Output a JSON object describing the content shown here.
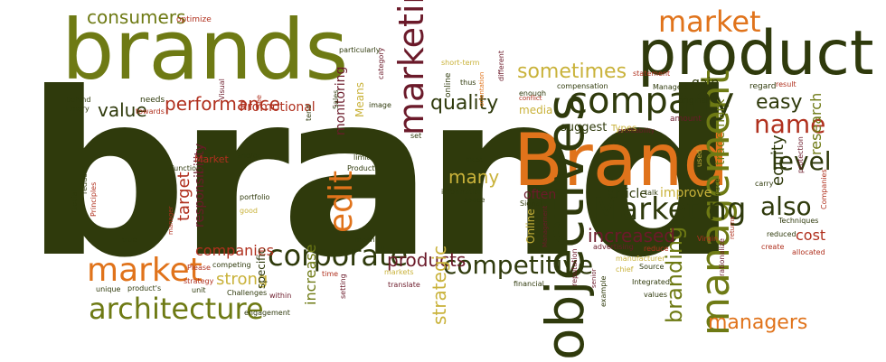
{
  "colors": {
    "dark_green": "#2f3a0c",
    "olive": "#6e7a14",
    "orange": "#e0731b",
    "maroon": "#6b1a2a",
    "red": "#b0301e",
    "yellow": "#c9b23a"
  },
  "words": [
    {
      "text": "brand",
      "color": "dark_green",
      "rotated": false
    },
    {
      "text": "brands",
      "color": "olive",
      "rotated": false
    },
    {
      "text": "product",
      "color": "dark_green",
      "rotated": false
    },
    {
      "text": "Brand",
      "color": "orange",
      "rotated": false
    },
    {
      "text": "objectives",
      "color": "dark_green",
      "rotated": true
    },
    {
      "text": "management",
      "color": "olive",
      "rotated": true
    },
    {
      "text": "company",
      "color": "dark_green",
      "rotated": false
    },
    {
      "text": "market",
      "color": "orange",
      "rotated": false
    },
    {
      "text": "market",
      "color": "orange",
      "rotated": false
    },
    {
      "text": "marketing",
      "color": "maroon",
      "rotated": true
    },
    {
      "text": "Marketing",
      "color": "dark_green",
      "rotated": false
    },
    {
      "text": "architecture",
      "color": "olive",
      "rotated": false
    },
    {
      "text": "corporate",
      "color": "dark_green",
      "rotated": false
    },
    {
      "text": "competitive",
      "color": "dark_green",
      "rotated": false
    },
    {
      "text": "consumers",
      "color": "olive",
      "rotated": false
    },
    {
      "text": "sometimes",
      "color": "yellow",
      "rotated": false
    },
    {
      "text": "performance",
      "color": "red",
      "rotated": false
    },
    {
      "text": "quality",
      "color": "dark_green",
      "rotated": false
    },
    {
      "text": "value",
      "color": "dark_green",
      "rotated": false
    },
    {
      "text": "name",
      "color": "red",
      "rotated": false
    },
    {
      "text": "level",
      "color": "dark_green",
      "rotated": false
    },
    {
      "text": "also",
      "color": "dark_green",
      "rotated": false
    },
    {
      "text": "easy",
      "color": "dark_green",
      "rotated": false
    },
    {
      "text": "research",
      "color": "olive",
      "rotated": true
    },
    {
      "text": "edit",
      "color": "orange",
      "rotated": true
    },
    {
      "text": "many",
      "color": "yellow",
      "rotated": false
    },
    {
      "text": "branding",
      "color": "olive",
      "rotated": true
    },
    {
      "text": "managers",
      "color": "orange",
      "rotated": false
    },
    {
      "text": "increased",
      "color": "maroon",
      "rotated": false
    },
    {
      "text": "products",
      "color": "maroon",
      "rotated": false
    },
    {
      "text": "strategic",
      "color": "yellow",
      "rotated": true
    },
    {
      "text": "companies",
      "color": "red",
      "rotated": false
    },
    {
      "text": "strong",
      "color": "yellow",
      "rotated": false
    },
    {
      "text": "target",
      "color": "red",
      "rotated": true
    },
    {
      "text": "increase",
      "color": "olive",
      "rotated": true
    },
    {
      "text": "equity",
      "color": "dark_green",
      "rotated": true
    },
    {
      "text": "cost",
      "color": "red",
      "rotated": false
    },
    {
      "text": "trademark",
      "color": "olive",
      "rotated": true
    },
    {
      "text": "Promotional",
      "color": "red",
      "rotated": false
    },
    {
      "text": "monitoring",
      "color": "maroon",
      "rotated": true
    },
    {
      "text": "responsibility",
      "color": "maroon",
      "rotated": true
    },
    {
      "text": "article",
      "color": "dark_green",
      "rotated": false
    },
    {
      "text": "improve",
      "color": "yellow",
      "rotated": false
    },
    {
      "text": "often",
      "color": "maroon",
      "rotated": false
    },
    {
      "text": "gain",
      "color": "dark_green",
      "rotated": false
    },
    {
      "text": "suggest",
      "color": "dark_green",
      "rotated": false
    },
    {
      "text": "specific",
      "color": "dark_green",
      "rotated": true
    },
    {
      "text": "Online",
      "color": "yellow",
      "rotated": true
    },
    {
      "text": "Means",
      "color": "yellow",
      "rotated": true
    },
    {
      "text": "Market",
      "color": "red",
      "rotated": false
    },
    {
      "text": "media",
      "color": "yellow",
      "rotated": false
    },
    {
      "text": "Types",
      "color": "yellow",
      "rotated": false
    },
    {
      "text": "original",
      "color": "dark_green",
      "rotated": false
    },
    {
      "text": "amount",
      "color": "maroon",
      "rotated": false
    },
    {
      "text": "regard",
      "color": "dark_green",
      "rotated": false
    },
    {
      "text": "result",
      "color": "red",
      "rotated": false
    },
    {
      "text": "Managers",
      "color": "dark_green",
      "rotated": false
    },
    {
      "text": "compensation",
      "color": "dark_green",
      "rotated": false
    },
    {
      "text": "statement",
      "color": "red",
      "rotated": false
    },
    {
      "text": "enough",
      "color": "dark_green",
      "rotated": false
    },
    {
      "text": "short-term",
      "color": "yellow",
      "rotated": false
    },
    {
      "text": "different",
      "color": "maroon",
      "rotated": true
    },
    {
      "text": "orientation",
      "color": "orange",
      "rotated": true
    },
    {
      "text": "online",
      "color": "dark_green",
      "rotated": true
    },
    {
      "text": "thus",
      "color": "dark_green",
      "rotated": false
    },
    {
      "text": "particularly",
      "color": "dark_green",
      "rotated": false
    },
    {
      "text": "category",
      "color": "maroon",
      "rotated": true
    },
    {
      "text": "image",
      "color": "dark_green",
      "rotated": false
    },
    {
      "text": "optimize",
      "color": "red",
      "rotated": false
    },
    {
      "text": "needs",
      "color": "dark_green",
      "rotated": false
    },
    {
      "text": "towards",
      "color": "red",
      "rotated": false
    },
    {
      "text": "behind",
      "color": "dark_green",
      "rotated": false
    },
    {
      "text": "Emory",
      "color": "dark_green",
      "rotated": false
    },
    {
      "text": "Visual",
      "color": "maroon",
      "rotated": true
    },
    {
      "text": "See",
      "color": "red",
      "rotated": true
    },
    {
      "text": "Sales",
      "color": "dark_green",
      "rotated": true
    },
    {
      "text": "tend",
      "color": "dark_green",
      "rotated": true
    },
    {
      "text": "set",
      "color": "dark_green",
      "rotated": false
    },
    {
      "text": "must",
      "color": "dark_green",
      "rotated": false
    },
    {
      "text": "limit",
      "color": "dark_green",
      "rotated": false
    },
    {
      "text": "Product",
      "color": "dark_green",
      "rotated": false
    },
    {
      "text": "Functions",
      "color": "dark_green",
      "rotated": false
    },
    {
      "text": "and/or",
      "color": "dark_green",
      "rotated": false
    },
    {
      "text": "reducer",
      "color": "dark_green",
      "rotated": true
    },
    {
      "text": "social",
      "color": "dark_green",
      "rotated": true
    },
    {
      "text": "Principles",
      "color": "red",
      "rotated": true
    },
    {
      "text": "true",
      "color": "dark_green",
      "rotated": false
    },
    {
      "text": "portfolio",
      "color": "dark_green",
      "rotated": false
    },
    {
      "text": "good",
      "color": "yellow",
      "rotated": false
    },
    {
      "text": "information",
      "color": "dark_green",
      "rotated": false
    },
    {
      "text": "space",
      "color": "dark_green",
      "rotated": false
    },
    {
      "text": "Signal",
      "color": "dark_green",
      "rotated": false
    },
    {
      "text": "talk",
      "color": "dark_green",
      "rotated": false
    },
    {
      "text": "mean",
      "color": "dark_green",
      "rotated": false
    },
    {
      "text": "manager",
      "color": "red",
      "rotated": true
    },
    {
      "text": "Please",
      "color": "red",
      "rotated": false
    },
    {
      "text": "competing",
      "color": "dark_green",
      "rotated": false
    },
    {
      "text": "strategy",
      "color": "red",
      "rotated": false
    },
    {
      "text": "unit",
      "color": "dark_green",
      "rotated": false
    },
    {
      "text": "unique",
      "color": "dark_green",
      "rotated": false
    },
    {
      "text": "product's",
      "color": "dark_green",
      "rotated": false
    },
    {
      "text": "Challenges",
      "color": "dark_green",
      "rotated": false
    },
    {
      "text": "within",
      "color": "maroon",
      "rotated": false
    },
    {
      "text": "engagement",
      "color": "dark_green",
      "rotated": false
    },
    {
      "text": "time",
      "color": "red",
      "rotated": false
    },
    {
      "text": "setting",
      "color": "maroon",
      "rotated": true
    },
    {
      "text": "markets",
      "color": "yellow",
      "rotated": false
    },
    {
      "text": "translate",
      "color": "maroon",
      "rotated": false
    },
    {
      "text": "financial",
      "color": "dark_green",
      "rotated": false
    },
    {
      "text": "reputation",
      "color": "maroon",
      "rotated": true
    },
    {
      "text": "senior",
      "color": "maroon",
      "rotated": true
    },
    {
      "text": "example",
      "color": "dark_green",
      "rotated": true
    },
    {
      "text": "advertising",
      "color": "maroon",
      "rotated": false
    },
    {
      "text": "manufacturer",
      "color": "yellow",
      "rotated": false
    },
    {
      "text": "chief",
      "color": "yellow",
      "rotated": false
    },
    {
      "text": "Source",
      "color": "dark_green",
      "rotated": false
    },
    {
      "text": "Integrated",
      "color": "dark_green",
      "rotated": false
    },
    {
      "text": "values",
      "color": "dark_green",
      "rotated": false
    },
    {
      "text": "reduce",
      "color": "red",
      "rotated": false
    },
    {
      "text": "Virgin",
      "color": "red",
      "rotated": false
    },
    {
      "text": "rationalize",
      "color": "maroon",
      "rotated": true
    },
    {
      "text": "returns",
      "color": "red",
      "rotated": true
    },
    {
      "text": "reduced",
      "color": "dark_green",
      "rotated": false
    },
    {
      "text": "create",
      "color": "red",
      "rotated": false
    },
    {
      "text": "allocated",
      "color": "red",
      "rotated": false
    },
    {
      "text": "Techniques",
      "color": "dark_green",
      "rotated": false
    },
    {
      "text": "carry",
      "color": "dark_green",
      "rotated": false
    },
    {
      "text": "pace",
      "color": "dark_green",
      "rotated": true
    },
    {
      "text": "Companies",
      "color": "red",
      "rotated": true
    },
    {
      "text": "protection",
      "color": "maroon",
      "rotated": true
    },
    {
      "text": "profitability",
      "color": "maroon",
      "rotated": false
    },
    {
      "text": "used",
      "color": "yellow",
      "rotated": true
    },
    {
      "text": "conflict",
      "color": "red",
      "rotated": false
    },
    {
      "text": "Management",
      "color": "maroon",
      "rotated": true
    }
  ]
}
